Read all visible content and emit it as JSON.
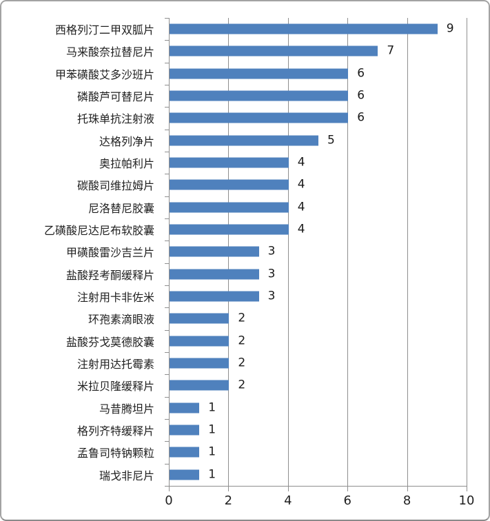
{
  "chart_data": {
    "type": "bar",
    "orientation": "horizontal",
    "title": "",
    "xlabel": "",
    "ylabel": "",
    "categories": [
      "西格列汀二甲双胍片",
      "马来酸奈拉替尼片",
      "甲苯磺酸艾多沙班片",
      "磷酸芦可替尼片",
      "托珠单抗注射液",
      "达格列净片",
      "奥拉帕利片",
      "碳酸司维拉姆片",
      "尼洛替尼胶囊",
      "乙磺酸尼达尼布软胶囊",
      "甲磺酸雷沙吉兰片",
      "盐酸羟考酮缓释片",
      "注射用卡非佐米",
      "环孢素滴眼液",
      "盐酸芬戈莫德胶囊",
      "注射用达托霉素",
      "米拉贝隆缓释片",
      "马昔腾坦片",
      "格列齐特缓释片",
      "孟鲁司特钠颗粒",
      "瑞戈非尼片"
    ],
    "values": [
      9,
      7,
      6,
      6,
      6,
      5,
      4,
      4,
      4,
      4,
      3,
      3,
      3,
      2,
      2,
      2,
      2,
      1,
      1,
      1,
      1
    ],
    "data_labels_shown": true,
    "x_axis_ticks": [
      0,
      2,
      4,
      6,
      8,
      10
    ],
    "xlim": [
      0,
      10
    ],
    "grid": true,
    "legend": "none",
    "bar_color": "#4f81bd",
    "gridline_color": "#8e8e8e",
    "text_color": "#1f1f1f"
  }
}
